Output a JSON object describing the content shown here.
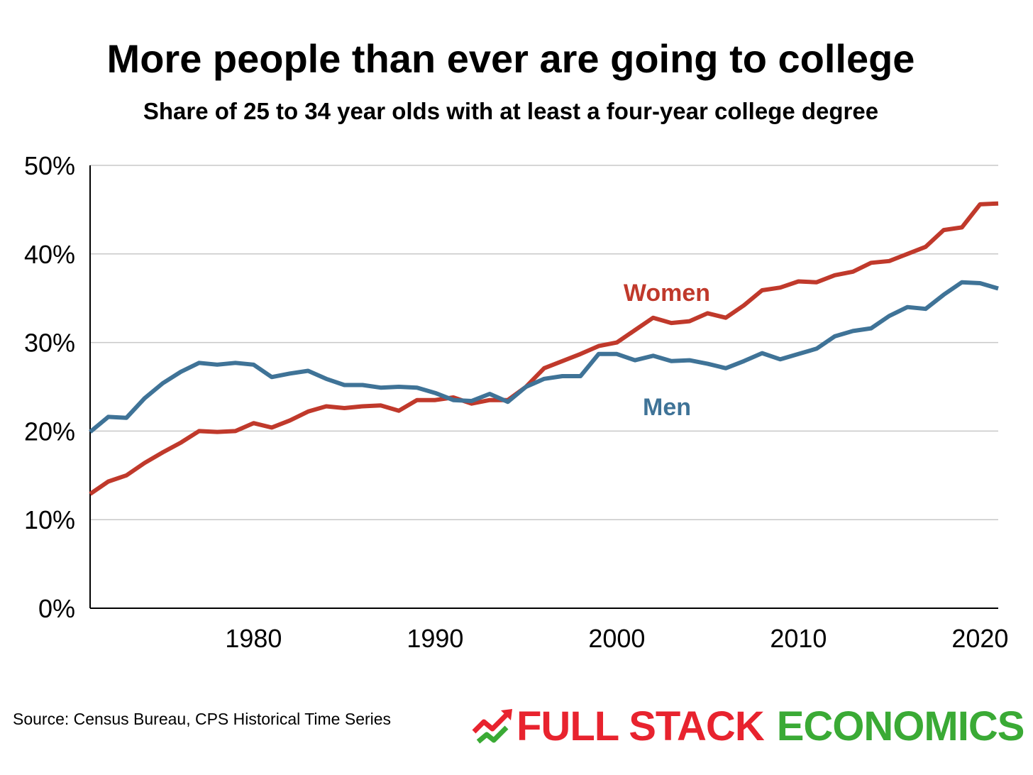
{
  "chart_data": {
    "type": "line",
    "title": "More people than ever are going to college",
    "subtitle": "Share of 25 to 34 year olds with at least a four-year college degree",
    "xlabel": "",
    "ylabel": "",
    "xlim": [
      1971,
      2021
    ],
    "ylim": [
      0,
      50
    ],
    "y_ticks": [
      0,
      10,
      20,
      30,
      40,
      50
    ],
    "y_tick_labels": [
      "0%",
      "10%",
      "20%",
      "30%",
      "40%",
      "50%"
    ],
    "x_ticks": [
      1980,
      1990,
      2000,
      2010,
      2020
    ],
    "x_tick_labels": [
      "1980",
      "1990",
      "2000",
      "2010",
      "2020"
    ],
    "grid": "horizontal",
    "x": [
      1971,
      1972,
      1973,
      1974,
      1975,
      1976,
      1977,
      1978,
      1979,
      1980,
      1981,
      1982,
      1983,
      1984,
      1985,
      1986,
      1987,
      1988,
      1989,
      1990,
      1991,
      1992,
      1993,
      1994,
      1995,
      1996,
      1997,
      1998,
      1999,
      2000,
      2001,
      2002,
      2003,
      2004,
      2005,
      2006,
      2007,
      2008,
      2009,
      2010,
      2011,
      2012,
      2013,
      2014,
      2015,
      2016,
      2017,
      2018,
      2019,
      2020,
      2021
    ],
    "series": [
      {
        "name": "Women",
        "color": "#c0392b",
        "values": [
          12.9,
          14.3,
          15.0,
          16.4,
          17.6,
          18.7,
          20.0,
          19.9,
          20.0,
          20.9,
          20.4,
          21.2,
          22.2,
          22.8,
          22.6,
          22.8,
          22.9,
          22.3,
          23.5,
          23.5,
          23.8,
          23.1,
          23.5,
          23.5,
          25.0,
          27.1,
          27.9,
          28.7,
          29.6,
          30.0,
          31.4,
          32.8,
          32.2,
          32.4,
          33.3,
          32.8,
          34.2,
          35.9,
          36.2,
          36.9,
          36.8,
          37.6,
          38.0,
          39.0,
          39.2,
          40.0,
          40.8,
          42.7,
          43.0,
          45.6,
          45.7
        ]
      },
      {
        "name": "Men",
        "color": "#3f7397",
        "values": [
          19.9,
          21.6,
          21.5,
          23.7,
          25.4,
          26.7,
          27.7,
          27.5,
          27.7,
          27.5,
          26.1,
          26.5,
          26.8,
          25.9,
          25.2,
          25.2,
          24.9,
          25.0,
          24.9,
          24.3,
          23.5,
          23.4,
          24.2,
          23.3,
          25.0,
          25.9,
          26.2,
          26.2,
          28.7,
          28.7,
          28.0,
          28.5,
          27.9,
          28.0,
          27.6,
          27.1,
          27.9,
          28.8,
          28.1,
          28.7,
          29.3,
          30.7,
          31.3,
          31.6,
          33.0,
          34.0,
          33.8,
          35.4,
          36.8,
          36.7,
          36.1
        ]
      }
    ],
    "annotations": [
      {
        "text": "Women",
        "color": "#c0392b"
      },
      {
        "text": "Men",
        "color": "#3f7397"
      }
    ]
  },
  "footer": {
    "source": "Source: Census Bureau, CPS Historical Time Series",
    "logo_word_a": "FULL STACK",
    "logo_word_b": "ECONOMICS",
    "logo_color_a": "#e8232e",
    "logo_color_b": "#3aaa35"
  }
}
